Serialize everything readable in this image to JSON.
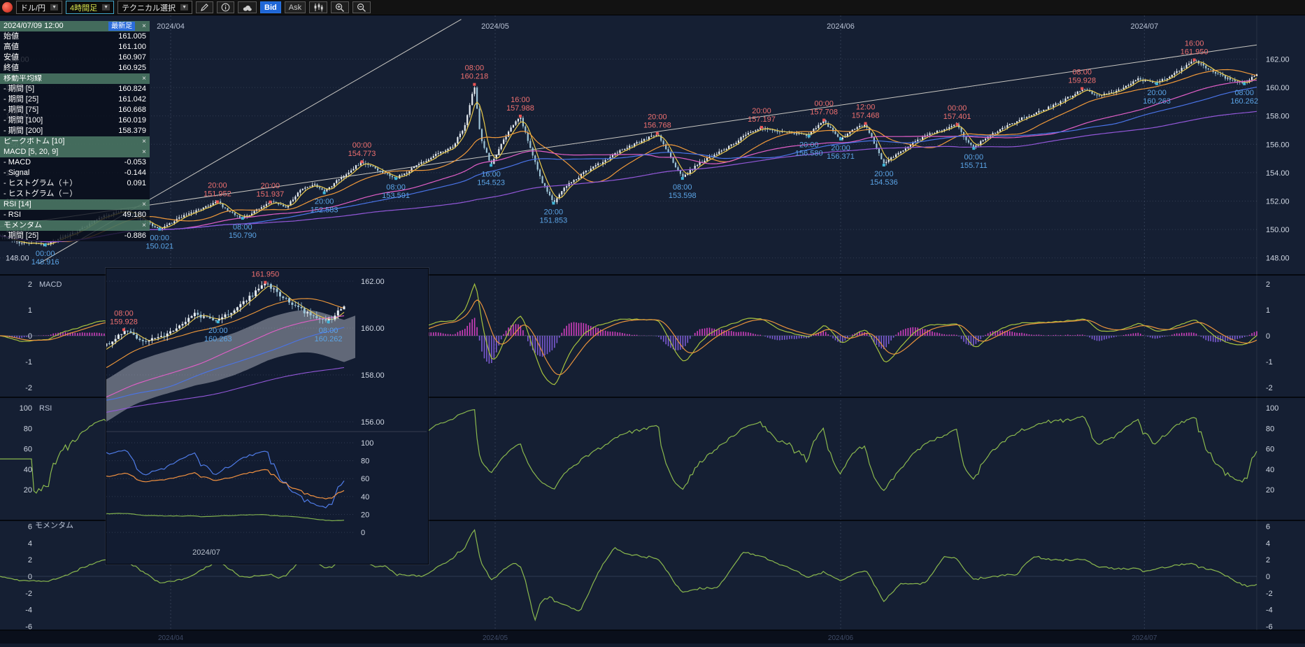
{
  "toolbar": {
    "pair_label": "ドル/円",
    "timeframe_label": "4時間足",
    "technical_label": "テクニカル選択",
    "bid_label": "Bid",
    "ask_label": "Ask",
    "caret_glyph": "▼"
  },
  "info_panel": {
    "close_glyph": "×",
    "rows": [
      {
        "type": "header-time",
        "label": "2024/07/09 12:00",
        "badge": "最新足"
      },
      {
        "type": "kv",
        "label": "始値",
        "value": "161.005"
      },
      {
        "type": "kv",
        "label": "高値",
        "value": "161.100"
      },
      {
        "type": "kv",
        "label": "安値",
        "value": "160.907"
      },
      {
        "type": "kv",
        "label": "終値",
        "value": "160.925"
      },
      {
        "type": "header",
        "label": "移動平均線"
      },
      {
        "type": "kv",
        "label": "- 期間 [5]",
        "value": "160.824"
      },
      {
        "type": "kv",
        "label": "- 期間 [25]",
        "value": "161.042"
      },
      {
        "type": "kv",
        "label": "- 期間 [75]",
        "value": "160.668"
      },
      {
        "type": "kv",
        "label": "- 期間 [100]",
        "value": "160.019"
      },
      {
        "type": "kv",
        "label": "- 期間 [200]",
        "value": "158.379"
      },
      {
        "type": "header",
        "label": "ピークボトム [10]"
      },
      {
        "type": "header",
        "label": "MACD [5, 20, 9]"
      },
      {
        "type": "kv",
        "label": "- MACD",
        "value": "-0.053"
      },
      {
        "type": "kv",
        "label": "- Signal",
        "value": "-0.144"
      },
      {
        "type": "kv",
        "label": "- ヒストグラム（＋）",
        "value": "0.091"
      },
      {
        "type": "kv",
        "label": "- ヒストグラム（－）",
        "value": ""
      },
      {
        "type": "header",
        "label": "RSI [14]"
      },
      {
        "type": "kv",
        "label": "- RSI",
        "value": "49.180"
      },
      {
        "type": "header",
        "label": "モメンタム"
      },
      {
        "type": "kv",
        "label": "- 期間 [25]",
        "value": "-0.886"
      }
    ]
  },
  "chart_data": {
    "type": "candlestick",
    "title": "ドル/円 4時間足",
    "bars": 520,
    "x_labels": [
      {
        "label": "2024/04",
        "t": 0.1358
      },
      {
        "label": "2024/05",
        "t": 0.394
      },
      {
        "label": "2024/06",
        "t": 0.6689
      },
      {
        "label": "2024/07",
        "t": 0.9106
      }
    ],
    "price_ticks": [
      162,
      160,
      158,
      156,
      154,
      152,
      150,
      148
    ],
    "waypoints": [
      [
        0,
        149.6
      ],
      [
        0.015,
        149.1
      ],
      [
        0.036,
        148.92
      ],
      [
        0.06,
        149.8
      ],
      [
        0.08,
        150.9
      ],
      [
        0.1,
        151.3
      ],
      [
        0.115,
        150.6
      ],
      [
        0.127,
        150.03
      ],
      [
        0.145,
        150.9
      ],
      [
        0.16,
        151.5
      ],
      [
        0.173,
        151.95
      ],
      [
        0.183,
        151.2
      ],
      [
        0.193,
        150.8
      ],
      [
        0.205,
        151.4
      ],
      [
        0.215,
        151.93
      ],
      [
        0.228,
        151.6
      ],
      [
        0.24,
        152.9
      ],
      [
        0.25,
        153.2
      ],
      [
        0.258,
        152.6
      ],
      [
        0.27,
        153.6
      ],
      [
        0.288,
        154.76
      ],
      [
        0.3,
        154.2
      ],
      [
        0.315,
        153.6
      ],
      [
        0.33,
        154.4
      ],
      [
        0.345,
        155.2
      ],
      [
        0.36,
        155.8
      ],
      [
        0.37,
        157.3
      ],
      [
        0.3775,
        160.2
      ],
      [
        0.382,
        156.6
      ],
      [
        0.3907,
        154.55
      ],
      [
        0.4,
        156.2
      ],
      [
        0.408,
        157.3
      ],
      [
        0.414,
        157.95
      ],
      [
        0.421,
        156.0
      ],
      [
        0.43,
        153.6
      ],
      [
        0.4404,
        151.9
      ],
      [
        0.452,
        153.2
      ],
      [
        0.465,
        154.0
      ],
      [
        0.48,
        154.8
      ],
      [
        0.495,
        155.6
      ],
      [
        0.51,
        156.2
      ],
      [
        0.523,
        156.75
      ],
      [
        0.532,
        155.3
      ],
      [
        0.543,
        153.65
      ],
      [
        0.555,
        154.6
      ],
      [
        0.57,
        155.3
      ],
      [
        0.585,
        156.1
      ],
      [
        0.595,
        156.8
      ],
      [
        0.606,
        157.15
      ],
      [
        0.62,
        156.9
      ],
      [
        0.632,
        156.8
      ],
      [
        0.6437,
        156.6
      ],
      [
        0.65,
        157.3
      ],
      [
        0.6556,
        157.65
      ],
      [
        0.662,
        157.0
      ],
      [
        0.6689,
        156.4
      ],
      [
        0.678,
        157.0
      ],
      [
        0.6887,
        157.43
      ],
      [
        0.695,
        156.2
      ],
      [
        0.7033,
        154.6
      ],
      [
        0.715,
        155.4
      ],
      [
        0.73,
        156.3
      ],
      [
        0.745,
        156.9
      ],
      [
        0.7616,
        157.38
      ],
      [
        0.768,
        156.4
      ],
      [
        0.7748,
        155.75
      ],
      [
        0.785,
        156.5
      ],
      [
        0.8,
        157.2
      ],
      [
        0.815,
        157.9
      ],
      [
        0.83,
        158.4
      ],
      [
        0.845,
        159.0
      ],
      [
        0.861,
        159.9
      ],
      [
        0.875,
        159.4
      ],
      [
        0.89,
        159.8
      ],
      [
        0.905,
        160.6
      ],
      [
        0.9205,
        160.3
      ],
      [
        0.935,
        161.0
      ],
      [
        0.9503,
        161.9
      ],
      [
        0.962,
        161.3
      ],
      [
        0.975,
        160.7
      ],
      [
        0.9901,
        160.3
      ],
      [
        1,
        160.93
      ]
    ],
    "annotations": [
      {
        "t": 0.036,
        "time": "00:00",
        "value": "148.916",
        "price": 148.916,
        "side": "low"
      },
      {
        "t": 0.127,
        "time": "00:00",
        "value": "150.021",
        "price": 150.021,
        "side": "low"
      },
      {
        "t": 0.173,
        "time": "20:00",
        "value": "151.952",
        "price": 151.952,
        "side": "high"
      },
      {
        "t": 0.193,
        "time": "08:00",
        "value": "150.790",
        "price": 150.79,
        "side": "low"
      },
      {
        "t": 0.215,
        "time": "20:00",
        "value": "151.937",
        "price": 151.937,
        "side": "high"
      },
      {
        "t": 0.258,
        "time": "20:00",
        "value": "152.583",
        "price": 152.583,
        "side": "low"
      },
      {
        "t": 0.288,
        "time": "00:00",
        "value": "154.773",
        "price": 154.773,
        "side": "high"
      },
      {
        "t": 0.315,
        "time": "08:00",
        "value": "153.591",
        "price": 153.591,
        "side": "low"
      },
      {
        "t": 0.3775,
        "time": "08:00",
        "value": "160.218",
        "price": 160.218,
        "side": "high"
      },
      {
        "t": 0.3907,
        "time": "16:00",
        "value": "154.523",
        "price": 154.523,
        "side": "low"
      },
      {
        "t": 0.414,
        "time": "16:00",
        "value": "157.988",
        "price": 157.988,
        "side": "high"
      },
      {
        "t": 0.4404,
        "time": "20:00",
        "value": "151.853",
        "price": 151.853,
        "side": "low"
      },
      {
        "t": 0.523,
        "time": "20:00",
        "value": "156.768",
        "price": 156.768,
        "side": "high"
      },
      {
        "t": 0.543,
        "time": "08:00",
        "value": "153.598",
        "price": 153.598,
        "side": "low"
      },
      {
        "t": 0.606,
        "time": "20:00",
        "value": "157.197",
        "price": 157.197,
        "side": "high"
      },
      {
        "t": 0.6437,
        "time": "20:00",
        "value": "156.580",
        "price": 156.58,
        "side": "low"
      },
      {
        "t": 0.6556,
        "time": "00:00",
        "value": "157.708",
        "price": 157.708,
        "side": "high"
      },
      {
        "t": 0.6689,
        "time": "20:00",
        "value": "156.371",
        "price": 156.371,
        "side": "low"
      },
      {
        "t": 0.6887,
        "time": "12:00",
        "value": "157.468",
        "price": 157.468,
        "side": "high"
      },
      {
        "t": 0.7033,
        "time": "20:00",
        "value": "154.536",
        "price": 154.536,
        "side": "low"
      },
      {
        "t": 0.7616,
        "time": "00:00",
        "value": "157.401",
        "price": 157.401,
        "side": "high"
      },
      {
        "t": 0.7748,
        "time": "00:00",
        "value": "155.711",
        "price": 155.711,
        "side": "low"
      },
      {
        "t": 0.861,
        "time": "08:00",
        "value": "159.928",
        "price": 159.928,
        "side": "high"
      },
      {
        "t": 0.9205,
        "time": "20:00",
        "value": "160.263",
        "price": 160.263,
        "side": "low"
      },
      {
        "t": 0.9503,
        "time": "16:00",
        "value": "161.950",
        "price": 161.95,
        "side": "high"
      },
      {
        "t": 0.9901,
        "time": "08:00",
        "value": "160.262",
        "price": 160.262,
        "side": "low"
      }
    ],
    "moving_averages": [
      {
        "period": 5,
        "color": "#e8c84a"
      },
      {
        "period": 25,
        "color": "#f0993a"
      },
      {
        "period": 75,
        "color": "#e25fc8"
      },
      {
        "period": 100,
        "color": "#4a74e8"
      },
      {
        "period": 200,
        "color": "#9257d8"
      }
    ],
    "trend_lines": [
      {
        "t1": 0.031,
        "p1": 147.6,
        "t2": 0.367,
        "p2": 164.8
      },
      {
        "t1": 0.0,
        "p1": 150.2,
        "t2": 1.0,
        "p2": 163.0
      }
    ],
    "candle_up_color": "#e6edf3",
    "candle_down_color": "#9cc3d6",
    "annotation_high_color": "#ef7070",
    "annotation_low_color": "#5ba4e6",
    "macd_panel": {
      "label": "MACD",
      "ticks": [
        2,
        1,
        0,
        -1,
        -2
      ],
      "macd_color": "#a6c23e",
      "signal_color": "#e8923c",
      "hist_pos_color": "#cf3fbd",
      "hist_neg_color": "#7b5ad2"
    },
    "rsi_panel": {
      "label": "RSI",
      "ticks": [
        100,
        80,
        60,
        40,
        20
      ],
      "line_color": "#8ab84e"
    },
    "momentum_panel": {
      "label": "モメンタム",
      "ticks": [
        6,
        4,
        2,
        0,
        -2,
        -4,
        -6
      ],
      "line_color": "#8ab84e"
    }
  },
  "inset_window": {
    "t_start": 0.85,
    "price_ticks": [
      162,
      160,
      158,
      156
    ],
    "osc_ticks": [
      100,
      80,
      60,
      40,
      20,
      0
    ],
    "date_label": "2024/07",
    "cloud_color": "rgba(175,180,192,0.5)",
    "osc_colors": {
      "blue": "#4f7ce8",
      "orange": "#ef9040",
      "green": "#7fae4e"
    },
    "annotations": [
      {
        "t": 0.9503,
        "time": "",
        "value": "161.950",
        "price": 161.95,
        "side": "high"
      },
      {
        "t": 0.861,
        "time": "08:00",
        "value": "159.928",
        "price": 159.928,
        "side": "high"
      },
      {
        "t": 0.9205,
        "time": "20:00",
        "value": "160.263",
        "price": 160.263,
        "side": "low"
      },
      {
        "t": 0.9901,
        "time": "08:00",
        "value": "160.262",
        "price": 160.262,
        "side": "low"
      }
    ]
  }
}
